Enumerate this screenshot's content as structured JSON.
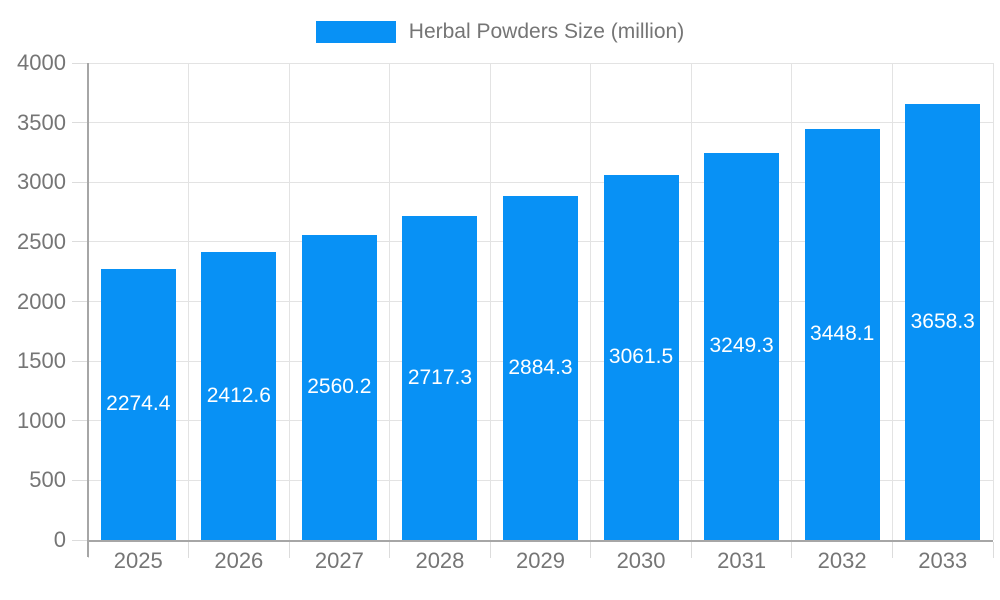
{
  "legend": {
    "label": "Herbal Powders Size (million)"
  },
  "colors": {
    "bar": "#0891f5",
    "bar_value_text": "#ffffff",
    "axis_text": "#757575",
    "legend_text": "#757575",
    "grid_line": "#e3e3e3",
    "tick_line": "#dcdcdc",
    "axis_line": "#a6a6a6"
  },
  "chart_data": {
    "type": "bar",
    "title": "Herbal Powders Size (million)",
    "categories": [
      "2025",
      "2026",
      "2027",
      "2028",
      "2029",
      "2030",
      "2031",
      "2032",
      "2033"
    ],
    "values": [
      2274.4,
      2412.6,
      2560.2,
      2717.3,
      2884.3,
      3061.5,
      3249.3,
      3448.1,
      3658.3
    ],
    "value_labels": [
      "2274.4",
      "2412.6",
      "2560.2",
      "2717.3",
      "2884.3",
      "3061.5",
      "3249.3",
      "3448.1",
      "3658.3"
    ],
    "xlabel": "",
    "ylabel": "",
    "ylim": [
      0,
      4000
    ],
    "ytick_step": 500,
    "yticks": [
      0,
      500,
      1000,
      1500,
      2000,
      2500,
      3000,
      3500,
      4000
    ],
    "grid": true,
    "legend_position": "top-center",
    "value_label_position": "inside-center",
    "bar_fraction": 0.745
  }
}
